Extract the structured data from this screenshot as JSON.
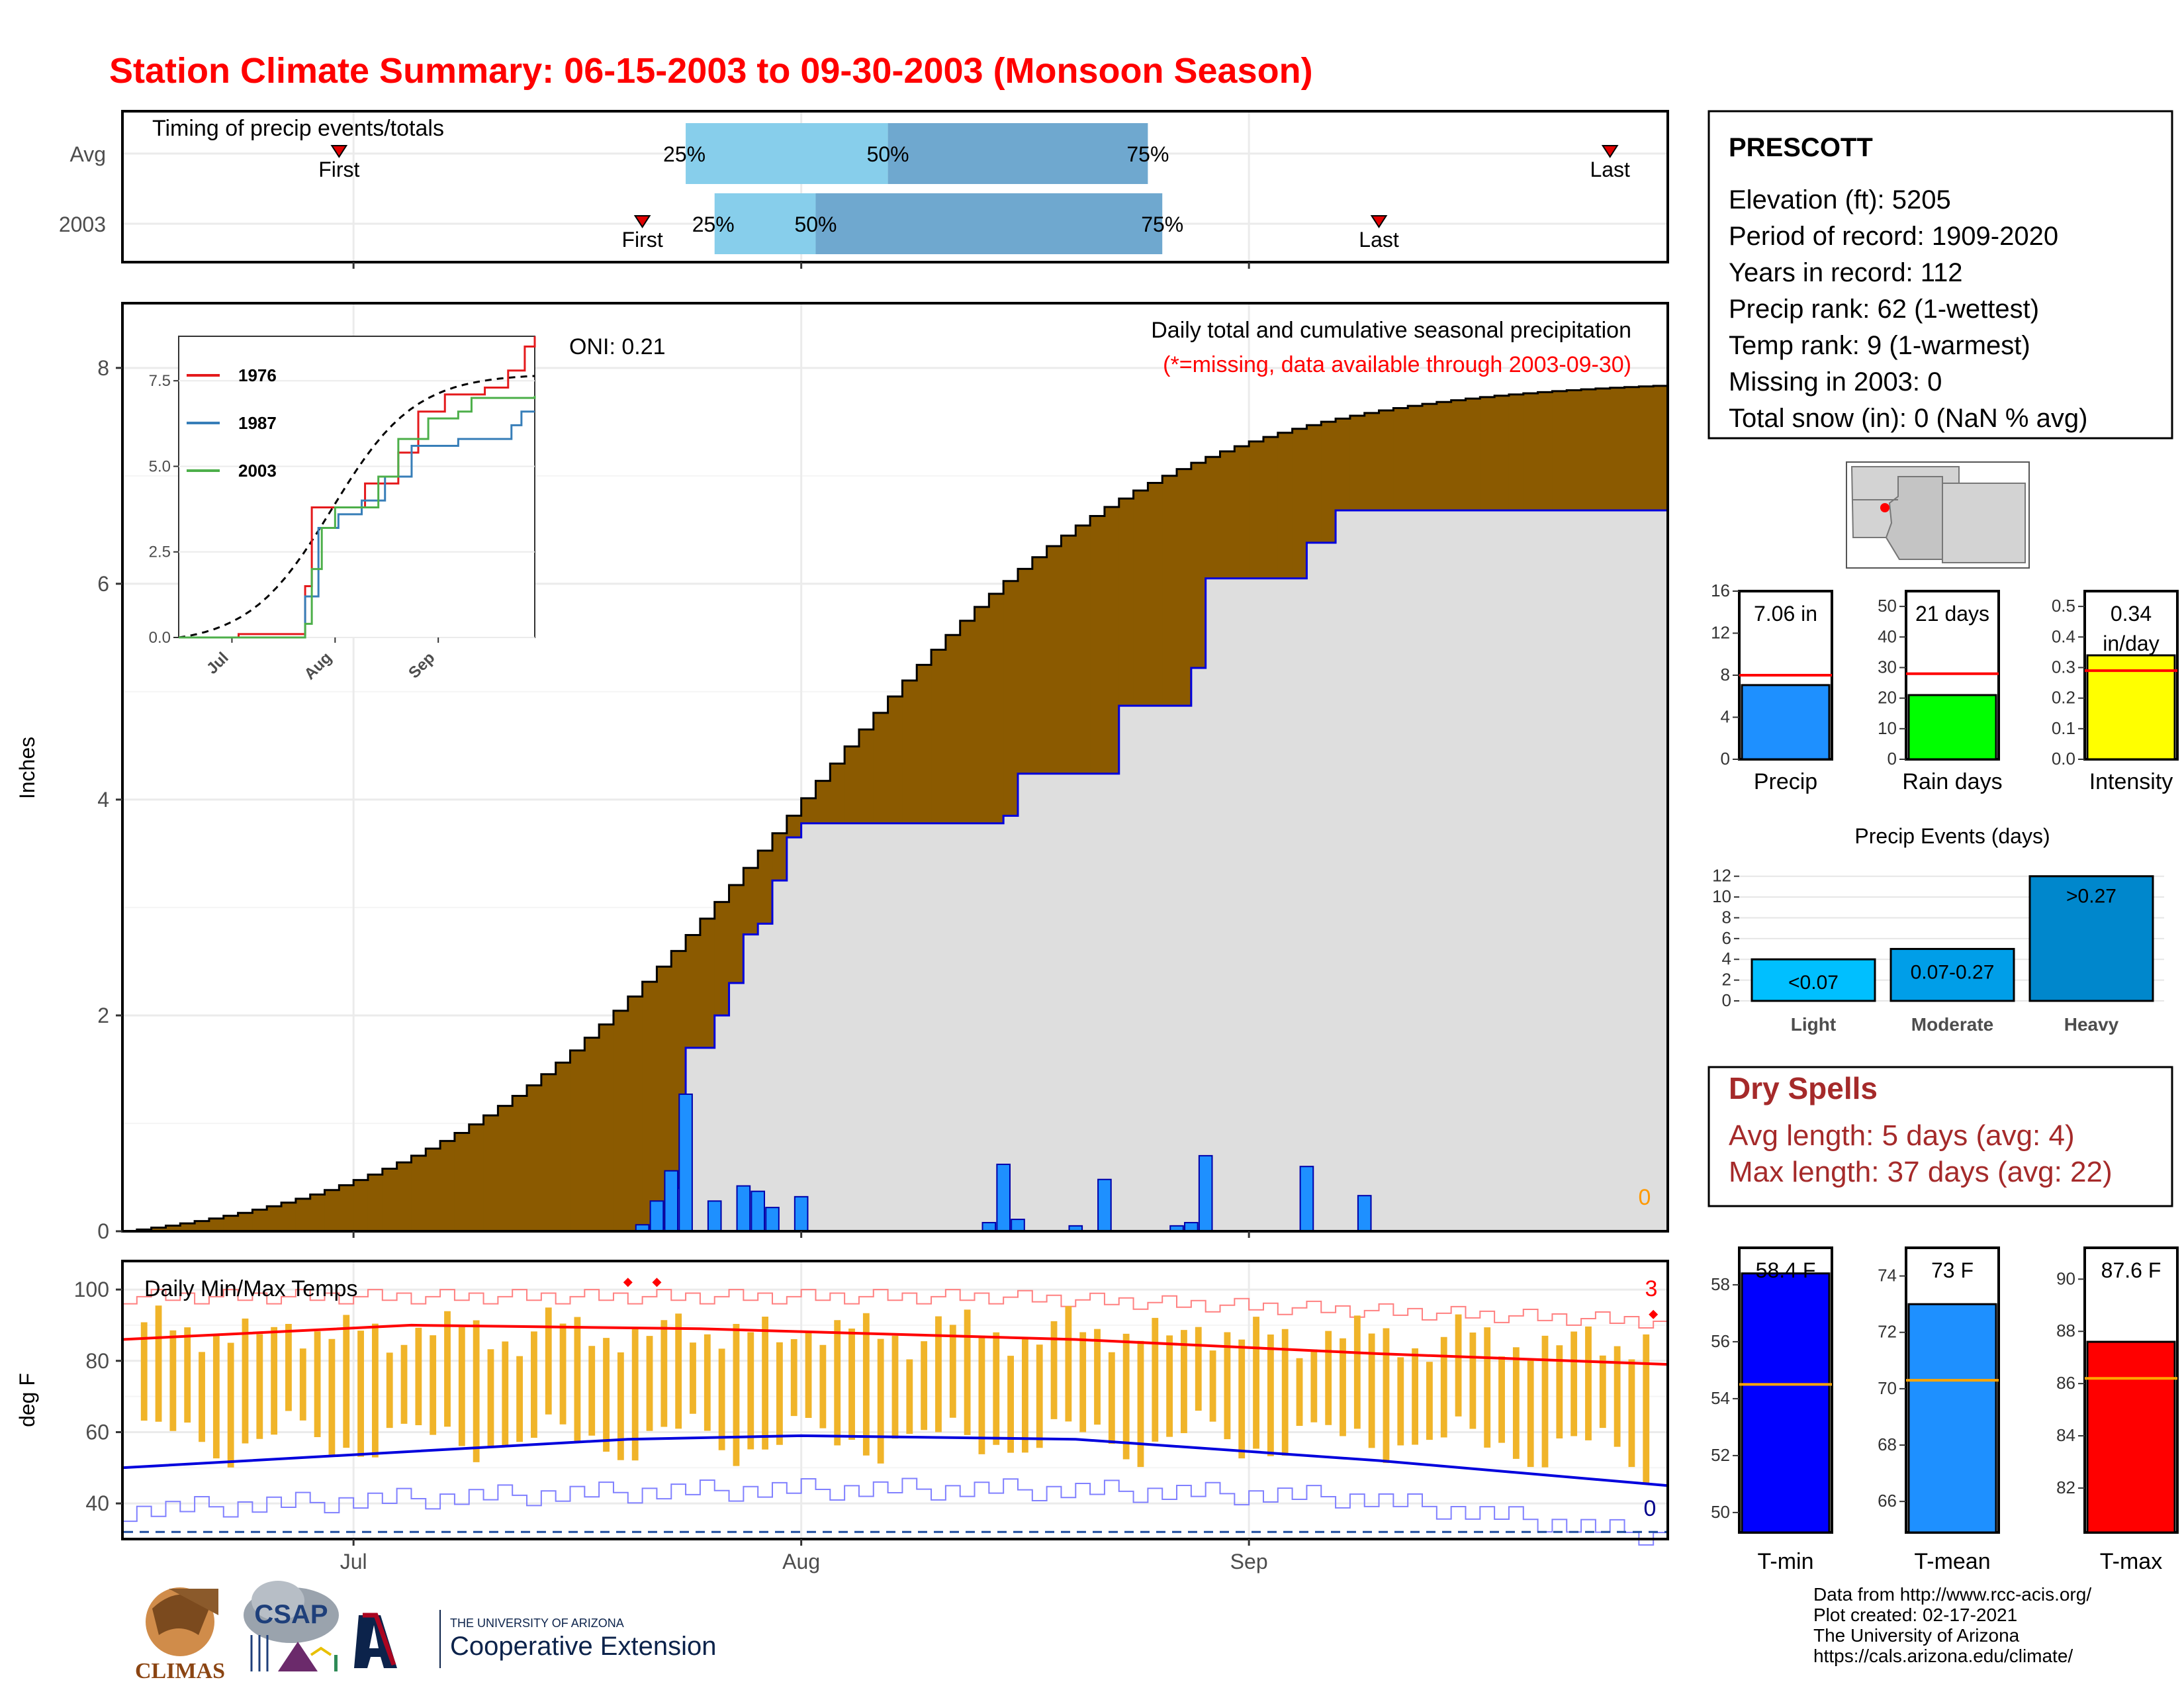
{
  "title": "Station Climate Summary: 06-15-2003 to 09-30-2003 (Monsoon Season)",
  "timing": {
    "panel_title": "Timing of precip events/totals",
    "rows": [
      {
        "label": "Avg",
        "first_date": "2003-06-30",
        "q25_date": "2003-07-24",
        "q50_date": "2003-08-07",
        "q75_date": "2003-08-25",
        "last_date": "2003-09-26",
        "first_label": "First",
        "q25_label": "25%",
        "q50_label": "50%",
        "q75_label": "75%",
        "last_label": "Last"
      },
      {
        "label": "2003",
        "first_date": "2003-07-21",
        "q25_date": "2003-07-26",
        "q50_date": "2003-08-02",
        "q75_date": "2003-08-26",
        "last_date": "2003-09-10",
        "first_label": "First",
        "q25_label": "25%",
        "q50_label": "50%",
        "q75_label": "75%",
        "last_label": "Last"
      }
    ]
  },
  "precip_panel": {
    "ylabel": "Inches",
    "oni": "ONI: 0.21",
    "title": "Daily total and cumulative seasonal precipitation",
    "note": "(*=missing, data available through 2003-09-30)",
    "missing_count": "0",
    "yticks": [
      "0",
      "2",
      "4",
      "6",
      "8"
    ],
    "inset": {
      "legend": [
        "1976",
        "1987",
        "2003"
      ],
      "colors": [
        "#e41a1c",
        "#377eb8",
        "#4daf4a"
      ],
      "yticks": [
        "0.0",
        "2.5",
        "5.0",
        "7.5"
      ],
      "xticks": [
        "Jul",
        "Aug",
        "Sep"
      ]
    }
  },
  "temp_panel": {
    "ylabel": "deg F",
    "title": "Daily Min/Max Temps",
    "record_high_count": "3",
    "record_low_count": "0",
    "yticks": [
      "40",
      "60",
      "80",
      "100"
    ],
    "xticks": [
      "Jul",
      "Aug",
      "Sep"
    ]
  },
  "station": {
    "name": "PRESCOTT",
    "lines": [
      "Elevation (ft): 5205",
      "Period of record: 1909-2020",
      "Years in record: 112",
      "Precip rank: 62 (1-wettest)",
      "Temp rank: 9 (1-warmest)",
      "Missing in 2003: 0",
      "Total snow (in): 0 (NaN % avg)"
    ]
  },
  "summary_bars": [
    {
      "name": "Precip",
      "label": "7.06 in",
      "value": 7.06,
      "avg": 8.0,
      "yticks": [
        "0",
        "4",
        "8",
        "12",
        "16"
      ],
      "ymax": 16,
      "color": "#1e90ff"
    },
    {
      "name": "Rain days",
      "label": "21 days",
      "value": 21,
      "avg": 28,
      "yticks": [
        "0",
        "10",
        "20",
        "30",
        "40",
        "50"
      ],
      "ymax": 55,
      "color": "#00ff00"
    },
    {
      "name": "Intensity",
      "label": "0.34 in/day",
      "label_top": "0.34",
      "label_bottom": "in/day",
      "value": 0.34,
      "avg": 0.29,
      "yticks": [
        "0.0",
        "0.1",
        "0.2",
        "0.3",
        "0.4",
        "0.5"
      ],
      "ymax": 0.55,
      "color": "#ffff00"
    }
  ],
  "precip_events": {
    "title": "Precip Events (days)",
    "categories": [
      "Light",
      "Moderate",
      "Heavy"
    ],
    "labels": [
      "<0.07",
      "0.07-0.27",
      ">0.27"
    ],
    "values": [
      4,
      5,
      12
    ],
    "yticks": [
      "0",
      "2",
      "4",
      "6",
      "8",
      "10",
      "12"
    ]
  },
  "dry_spells": {
    "title": "Dry Spells",
    "avg_line": "Avg length: 5 days (avg: 4)",
    "max_line": "Max length: 37 days (avg: 22)"
  },
  "temp_bars": [
    {
      "name": "T-min",
      "label": "58.4 F",
      "value": 58.4,
      "avg": 54.5,
      "yticks": [
        "50",
        "52",
        "54",
        "56",
        "58"
      ],
      "ymin": 49.3,
      "ymax": 59.3,
      "color": "#0000ff"
    },
    {
      "name": "T-mean",
      "label": "73 F",
      "value": 73.0,
      "avg": 70.3,
      "yticks": [
        "66",
        "68",
        "70",
        "72",
        "74"
      ],
      "ymin": 64.9,
      "ymax": 75.0,
      "color": "#1e90ff"
    },
    {
      "name": "T-max",
      "label": "87.6 F",
      "value": 87.6,
      "avg": 86.2,
      "yticks": [
        "82",
        "84",
        "86",
        "88",
        "90"
      ],
      "ymin": 80.3,
      "ymax": 91.2,
      "color": "#ff0000"
    }
  ],
  "credits": [
    "Data from http://www.rcc-acis.org/",
    "Plot created: 02-17-2021",
    "The University of Arizona",
    "https://cals.arizona.edu/climate/"
  ],
  "logos": {
    "climas": "CLIMAS",
    "csap": "CSAP",
    "ua_small": "THE UNIVERSITY OF ARIZONA",
    "ua_big": "Cooperative Extension"
  },
  "chart_data": [
    {
      "type": "area",
      "title": "Daily total and cumulative seasonal precipitation",
      "ylabel": "Inches",
      "x_range": [
        "2003-06-15",
        "2003-09-30"
      ],
      "ylim": [
        0,
        8.6
      ],
      "series": [
        {
          "name": "Cumulative 2003",
          "x": [
            "2003-06-15",
            "2003-07-21",
            "2003-07-23",
            "2003-07-24",
            "2003-07-26",
            "2003-07-27",
            "2003-07-28",
            "2003-07-29",
            "2003-07-30",
            "2003-07-31",
            "2003-08-01",
            "2003-08-15",
            "2003-08-16",
            "2003-08-21",
            "2003-08-23",
            "2003-08-28",
            "2003-08-29",
            "2003-09-05",
            "2003-09-07",
            "2003-09-30"
          ],
          "y": [
            0.0,
            0.03,
            0.4,
            1.7,
            2.0,
            2.3,
            2.75,
            2.85,
            3.25,
            3.65,
            3.78,
            3.85,
            4.24,
            4.24,
            4.87,
            5.22,
            6.05,
            6.38,
            6.68,
            7.06
          ]
        },
        {
          "name": "Daily precip 2003",
          "x": [
            "2003-07-21",
            "2003-07-22",
            "2003-07-23",
            "2003-07-24",
            "2003-07-26",
            "2003-07-28",
            "2003-07-29",
            "2003-07-30",
            "2003-08-01",
            "2003-08-14",
            "2003-08-15",
            "2003-08-16",
            "2003-08-20",
            "2003-08-22",
            "2003-08-27",
            "2003-08-28",
            "2003-08-29",
            "2003-09-05",
            "2003-09-09"
          ],
          "y": [
            0.06,
            0.28,
            0.56,
            1.27,
            0.28,
            0.42,
            0.37,
            0.22,
            0.32,
            0.08,
            0.62,
            0.11,
            0.05,
            0.48,
            0.05,
            0.08,
            0.7,
            0.6,
            0.33
          ]
        }
      ]
    },
    {
      "type": "line",
      "title": "Daily Min/Max Temps",
      "ylabel": "deg F",
      "ylim": [
        30,
        108
      ],
      "series": [
        {
          "name": "Avg max",
          "x": [
            "2003-06-15",
            "2003-07-05",
            "2003-07-25",
            "2003-08-20",
            "2003-09-10",
            "2003-09-30"
          ],
          "y": [
            86,
            90,
            89,
            86,
            82,
            79
          ]
        },
        {
          "name": "Avg min",
          "x": [
            "2003-06-15",
            "2003-07-20",
            "2003-08-01",
            "2003-08-20",
            "2003-09-10",
            "2003-09-30"
          ],
          "y": [
            50,
            58,
            59,
            58,
            52,
            45
          ]
        }
      ]
    }
  ]
}
